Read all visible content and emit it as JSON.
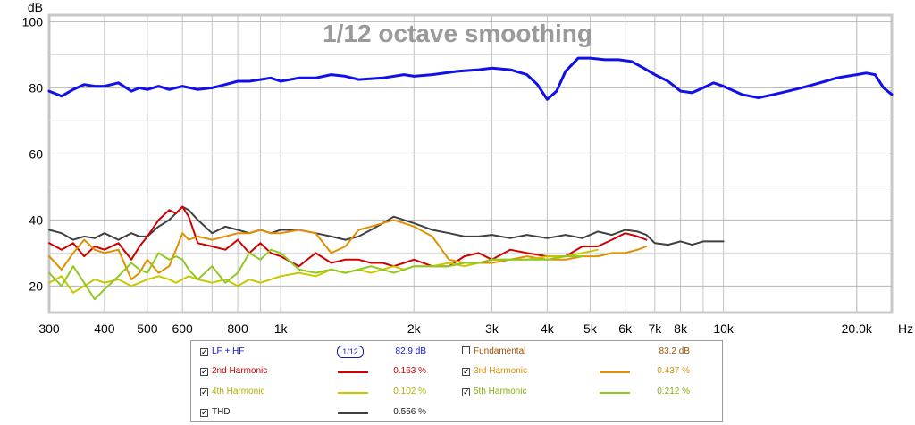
{
  "chart_data": {
    "type": "line",
    "title": "1/12 octave smoothing",
    "ylabel": "dB",
    "xlabel": "Hz",
    "x_scale": "log",
    "xlim": [
      300,
      24000
    ],
    "ylim": [
      12,
      102
    ],
    "grid": true,
    "y_ticks": [
      20,
      40,
      60,
      80,
      100
    ],
    "x_ticks": [
      {
        "v": 300,
        "label": "300"
      },
      {
        "v": 400,
        "label": "400"
      },
      {
        "v": 500,
        "label": "500"
      },
      {
        "v": 600,
        "label": "600"
      },
      {
        "v": 800,
        "label": "800"
      },
      {
        "v": 1000,
        "label": "1k"
      },
      {
        "v": 2000,
        "label": "2k"
      },
      {
        "v": 3000,
        "label": "3k"
      },
      {
        "v": 4000,
        "label": "4k"
      },
      {
        "v": 5000,
        "label": "5k"
      },
      {
        "v": 6000,
        "label": "6k"
      },
      {
        "v": 7000,
        "label": "7k"
      },
      {
        "v": 8000,
        "label": "8k"
      },
      {
        "v": 10000,
        "label": "10k"
      },
      {
        "v": 20000,
        "label": "20.0k"
      }
    ],
    "series": [
      {
        "name": "LF + HF",
        "color": "#1010e8",
        "width": 3,
        "x": [
          300,
          320,
          340,
          360,
          380,
          400,
          430,
          460,
          480,
          500,
          530,
          560,
          600,
          650,
          700,
          750,
          800,
          850,
          900,
          950,
          1000,
          1100,
          1200,
          1300,
          1400,
          1500,
          1700,
          1900,
          2000,
          2200,
          2500,
          2800,
          3000,
          3300,
          3600,
          3800,
          4000,
          4200,
          4400,
          4700,
          5000,
          5400,
          5800,
          6200,
          6600,
          7000,
          7500,
          8000,
          8500,
          9000,
          9500,
          10000,
          11000,
          12000,
          13000,
          14000,
          15000,
          16000,
          17000,
          18000,
          19000,
          20000,
          21000,
          22000,
          23000,
          24000
        ],
        "y": [
          79,
          77.5,
          79.5,
          81,
          80.5,
          80.5,
          81.5,
          79,
          80,
          79.5,
          80.5,
          79.5,
          80.5,
          79.5,
          80,
          81,
          82,
          82,
          82.5,
          83,
          82,
          83,
          83,
          84,
          83.5,
          82.5,
          83,
          84,
          83.5,
          84,
          85,
          85.5,
          86,
          85.5,
          84,
          81,
          76.5,
          79,
          85,
          89,
          89,
          88.5,
          88.5,
          88,
          86,
          84,
          82,
          79,
          78.5,
          80,
          81.5,
          80.5,
          78,
          77,
          78,
          79,
          80,
          81,
          82,
          83,
          83.5,
          84,
          84.5,
          84,
          80,
          78
        ]
      },
      {
        "name": "THD",
        "color": "#404040",
        "width": 2,
        "x": [
          300,
          320,
          340,
          360,
          380,
          400,
          430,
          460,
          480,
          500,
          530,
          560,
          580,
          600,
          620,
          650,
          700,
          750,
          800,
          850,
          900,
          950,
          1000,
          1100,
          1200,
          1300,
          1400,
          1500,
          1600,
          1700,
          1800,
          1900,
          2000,
          2200,
          2400,
          2600,
          2800,
          3000,
          3300,
          3600,
          4000,
          4400,
          4800,
          5200,
          5600,
          6000,
          6400,
          6700,
          7000,
          7500,
          8000,
          8500,
          9000,
          9500,
          10000
        ],
        "y": [
          37,
          36,
          34,
          35,
          34.5,
          36,
          34,
          36,
          35,
          35,
          38,
          40,
          42,
          44,
          43,
          40,
          36,
          38,
          37,
          36,
          37,
          36,
          37,
          37,
          36,
          35,
          34,
          35,
          37,
          39,
          41,
          40,
          39,
          37,
          36,
          35,
          35,
          35.5,
          34.5,
          35.5,
          34.5,
          35.5,
          34.5,
          36.5,
          35.5,
          37,
          36.5,
          35.5,
          33,
          32.5,
          33.5,
          32.5,
          33.5,
          33.5,
          33.5
        ]
      },
      {
        "name": "2nd Harmonic",
        "color": "#d00000",
        "width": 2,
        "x": [
          300,
          320,
          340,
          360,
          380,
          400,
          430,
          460,
          480,
          500,
          530,
          560,
          580,
          600,
          620,
          650,
          700,
          750,
          800,
          850,
          900,
          950,
          1000,
          1100,
          1200,
          1300,
          1400,
          1500,
          1600,
          1700,
          1800,
          1900,
          2000,
          2200,
          2400,
          2600,
          2800,
          3000,
          3300,
          3600,
          4000,
          4400,
          4800,
          5200,
          5600,
          6000,
          6400,
          6700
        ],
        "y": [
          33,
          31,
          33,
          29,
          32,
          31,
          33,
          28,
          32,
          35,
          40,
          43,
          42,
          44,
          41,
          33,
          32,
          31,
          34,
          30,
          33,
          30,
          29,
          26,
          30,
          27,
          28,
          28,
          27,
          27,
          26,
          27,
          28,
          26,
          26,
          29,
          30,
          28,
          31,
          30,
          29,
          29,
          32,
          32,
          34,
          36,
          35,
          34
        ]
      },
      {
        "name": "3rd Harmonic",
        "color": "#e09000",
        "width": 2,
        "x": [
          300,
          320,
          340,
          360,
          380,
          400,
          430,
          460,
          480,
          500,
          530,
          560,
          580,
          600,
          620,
          650,
          700,
          750,
          800,
          850,
          900,
          950,
          1000,
          1100,
          1200,
          1300,
          1400,
          1500,
          1600,
          1700,
          1800,
          1900,
          2000,
          2200,
          2400,
          2600,
          2800,
          3000,
          3300,
          3600,
          4000,
          4400,
          4800,
          5200,
          5600,
          6000,
          6400,
          6700
        ],
        "y": [
          29,
          25,
          30,
          34,
          31,
          30,
          31,
          22,
          24,
          28,
          24,
          26,
          31,
          36,
          34,
          35,
          34,
          35,
          36,
          36,
          37,
          36,
          36,
          37,
          36,
          30,
          32,
          37,
          38,
          39,
          40,
          39,
          38,
          35,
          28,
          27,
          27,
          27,
          28,
          29,
          28,
          28,
          29,
          29,
          30,
          30,
          31,
          32
        ]
      },
      {
        "name": "4th Harmonic",
        "color": "#c8c800",
        "width": 2,
        "x": [
          300,
          320,
          340,
          360,
          380,
          400,
          430,
          460,
          480,
          500,
          530,
          560,
          580,
          600,
          620,
          650,
          700,
          750,
          800,
          850,
          900,
          950,
          1000,
          1100,
          1200,
          1300,
          1400,
          1500,
          1600,
          1700,
          1800,
          1900,
          2000,
          2200,
          2400,
          2600,
          2800,
          3000,
          3300,
          3600,
          4000,
          4400,
          4800,
          5200
        ],
        "y": [
          21,
          23,
          18,
          20,
          22,
          21,
          22,
          20,
          21,
          22,
          23,
          22,
          21,
          22,
          23,
          22,
          21,
          22,
          20,
          22,
          21,
          22,
          23,
          24,
          23,
          25,
          24,
          25,
          24,
          25,
          26,
          25,
          26,
          26,
          27,
          26,
          27,
          28,
          28,
          28,
          29,
          29,
          30,
          31
        ]
      },
      {
        "name": "5th Harmonic",
        "color": "#90c820",
        "width": 2,
        "x": [
          300,
          320,
          340,
          360,
          380,
          400,
          430,
          460,
          480,
          500,
          530,
          560,
          580,
          600,
          620,
          650,
          700,
          750,
          800,
          850,
          900,
          950,
          1000,
          1100,
          1200,
          1300,
          1400,
          1500,
          1600,
          1700,
          1800,
          1900,
          2000,
          2200,
          2400,
          2600,
          2800,
          3000,
          3300,
          3600,
          4000,
          4400,
          4800
        ],
        "y": [
          24,
          20,
          26,
          21,
          16,
          19,
          23,
          27,
          25,
          24,
          30,
          28,
          29,
          28,
          25,
          22,
          26,
          21,
          24,
          30,
          28,
          31,
          30,
          25,
          24,
          25,
          24,
          25,
          26,
          25,
          24,
          25,
          26,
          26,
          26,
          27,
          27,
          28,
          28,
          28,
          28,
          29,
          29
        ]
      }
    ],
    "legend": [
      {
        "label": "LF + HF",
        "checked": true,
        "color": "#1010e8",
        "value": "82.9 dB",
        "smoothing": "1/12"
      },
      {
        "label": "Fundamental",
        "checked": false,
        "color": "#a05000",
        "value": "83.2 dB"
      },
      {
        "label": "2nd Harmonic",
        "checked": true,
        "color": "#d00000",
        "value": "0.163 %"
      },
      {
        "label": "3rd Harmonic",
        "checked": true,
        "color": "#e09000",
        "value": "0.437 %"
      },
      {
        "label": "4th Harmonic",
        "checked": true,
        "color": "#c8c800",
        "value": "0.102 %"
      },
      {
        "label": "5th Harmonic",
        "checked": true,
        "color": "#90c820",
        "value": "0.212 %"
      },
      {
        "label": "THD",
        "checked": true,
        "color": "#404040",
        "value": "0.556 %"
      }
    ]
  }
}
